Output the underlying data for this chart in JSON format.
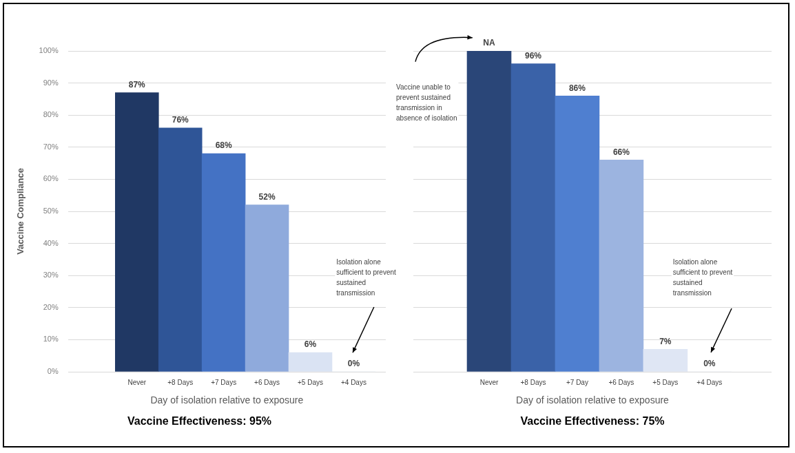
{
  "chart_data": [
    {
      "type": "bar",
      "title": "Vaccine Effectiveness: 95%",
      "xlabel": "Day of isolation relative to exposure",
      "ylabel": "Vaccine Compliance",
      "categories": [
        "Never",
        "+8 Days",
        "+7 Days",
        "+6 Days",
        "+5 Days",
        "+4 Days"
      ],
      "values": [
        87,
        76,
        68,
        52,
        6,
        0
      ],
      "colors": [
        "#203864",
        "#2f5597",
        "#4472c4",
        "#8faadc",
        "#dae3f3",
        "#dae3f3"
      ],
      "value_labels": [
        "87%",
        "76%",
        "68%",
        "52%",
        "6%",
        "0%"
      ],
      "ylim": [
        0,
        100
      ],
      "yticks": [
        {
          "value": 0,
          "label": "0%"
        },
        {
          "value": 10,
          "label": "10%"
        },
        {
          "value": 20,
          "label": "20%"
        },
        {
          "value": 30,
          "label": "30%"
        },
        {
          "value": 40,
          "label": "40%"
        },
        {
          "value": 50,
          "label": "50%"
        },
        {
          "value": 60,
          "label": "60%"
        },
        {
          "value": 70,
          "label": "70%"
        },
        {
          "value": 80,
          "label": "80%"
        },
        {
          "value": 90,
          "label": "90%"
        },
        {
          "value": 100,
          "label": "100%"
        }
      ],
      "grid": "y",
      "annotations": [
        "Isolation alone sufficient to prevent sustained transmission"
      ]
    },
    {
      "type": "bar",
      "title": "Vaccine Effectiveness: 75%",
      "xlabel": "Day of isolation relative to exposure",
      "categories": [
        "Never",
        "+8 Days",
        "+7 Day",
        "+6 Days",
        "+5 Days",
        "+4 Days"
      ],
      "values": [
        100,
        96,
        86,
        66,
        7,
        0
      ],
      "colors": [
        "#2a4678",
        "#3a62a8",
        "#4f7fd0",
        "#9cb4e0",
        "#dfe6f4",
        "#dfe6f4"
      ],
      "value_labels": [
        "NA",
        "96%",
        "86%",
        "66%",
        "7%",
        "0%"
      ],
      "ylim": [
        0,
        100
      ],
      "yticks": [
        0,
        10,
        20,
        30,
        40,
        50,
        60,
        70,
        80,
        90,
        100
      ],
      "grid": "y",
      "tick_labels": "x",
      "annotations": [
        "Vaccine unable to prevent sustained transmission in absence of isolation",
        "Isolation alone sufficient to prevent sustained transmission"
      ]
    }
  ]
}
